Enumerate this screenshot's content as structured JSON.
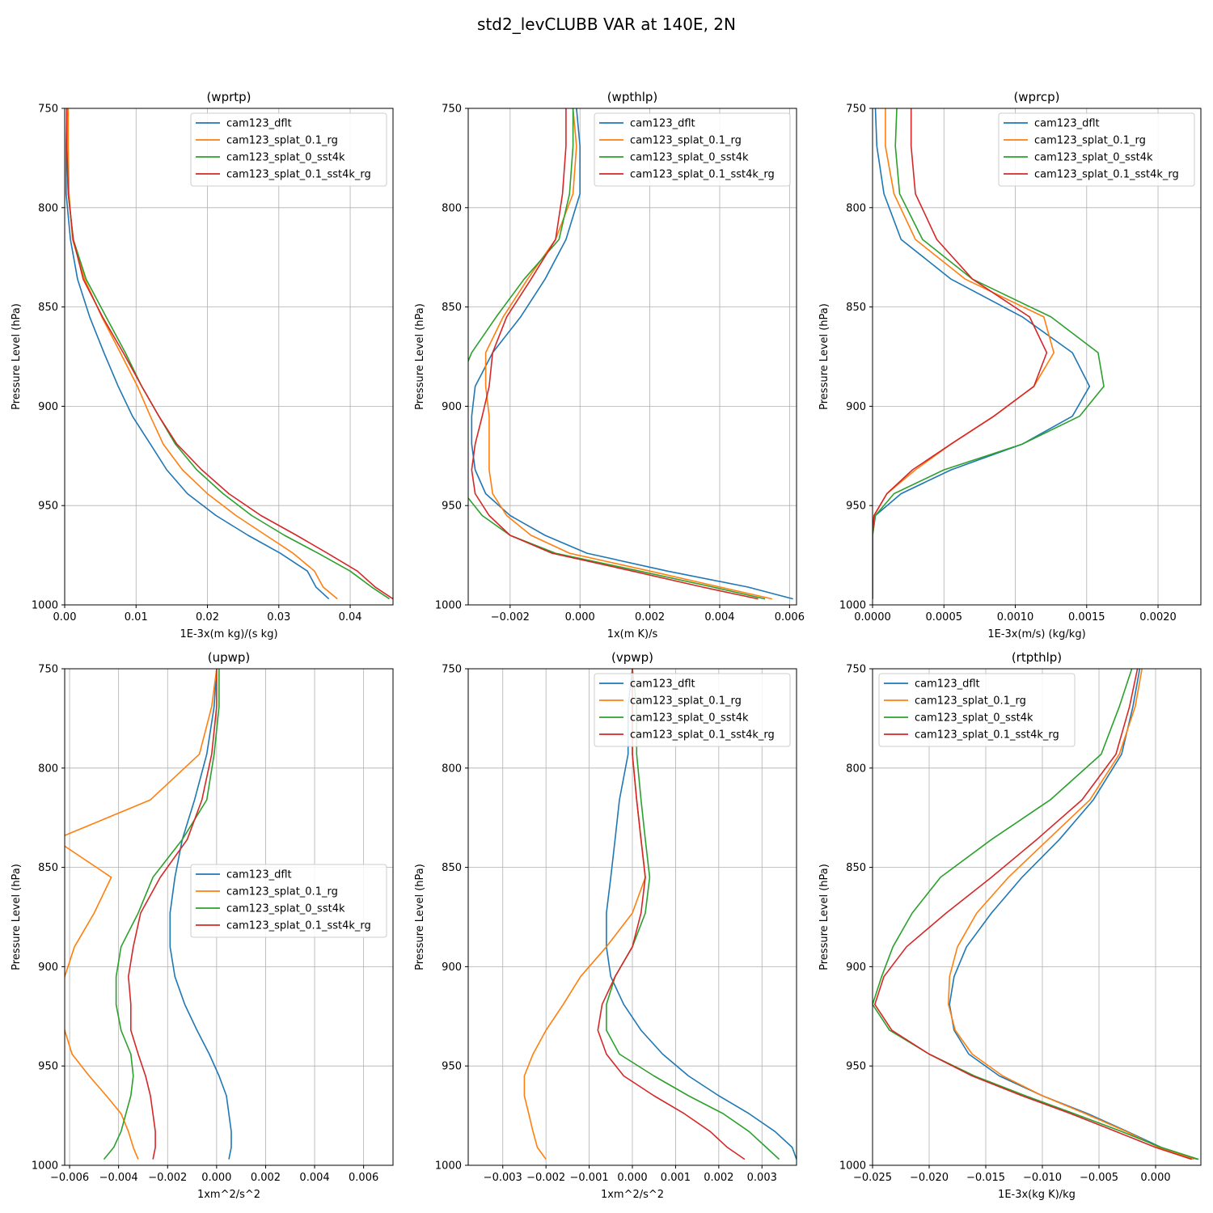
{
  "figure": {
    "title": "std2_levCLUBB VAR at 140E, 2N"
  },
  "colors": {
    "cam123_dflt": "#1f77b4",
    "cam123_splat_0.1_rg": "#ff7f0e",
    "cam123_splat_0_sst4k": "#2ca02c",
    "cam123_splat_0.1_sst4k_rg": "#d62728"
  },
  "chart_data": [
    {
      "type": "line",
      "title": "(wprtp)",
      "xlabel": "1E-3x(m kg)/(s kg)",
      "ylabel": "Pressure Level (hPa)",
      "xlim": [
        0,
        0.046
      ],
      "ylim": [
        1000,
        750
      ],
      "xticks": [
        0,
        0.01,
        0.02,
        0.03,
        0.04
      ],
      "xtick_labels": [
        "0.00",
        "0.01",
        "0.02",
        "0.03",
        "0.04"
      ],
      "yticks": [
        750,
        800,
        850,
        900,
        950,
        1000
      ],
      "ytick_labels": [
        "750",
        "800",
        "850",
        "900",
        "950",
        "1000"
      ],
      "grid": true,
      "legend": "top-right",
      "y": [
        750,
        769,
        793,
        816,
        836,
        855,
        873,
        890,
        905,
        919,
        932,
        944,
        955,
        965,
        974,
        983,
        991,
        997
      ],
      "series": [
        {
          "name": "cam123_dflt",
          "values": [
            0.0003,
            0.0002,
            0.0002,
            0.0008,
            0.0018,
            0.0035,
            0.0055,
            0.0075,
            0.0095,
            0.012,
            0.0143,
            0.0172,
            0.0212,
            0.0257,
            0.0302,
            0.034,
            0.0352,
            0.037
          ]
        },
        {
          "name": "cam123_splat_0.1_rg",
          "values": [
            0.0005,
            0.0005,
            0.0006,
            0.0011,
            0.0028,
            0.0052,
            0.0078,
            0.0102,
            0.012,
            0.0138,
            0.0165,
            0.02,
            0.024,
            0.0282,
            0.032,
            0.035,
            0.0362,
            0.0382
          ]
        },
        {
          "name": "cam123_splat_0_sst4k",
          "values": [
            0.0003,
            0.0003,
            0.0005,
            0.0012,
            0.003,
            0.0058,
            0.0085,
            0.0108,
            0.0132,
            0.0155,
            0.0185,
            0.0222,
            0.0262,
            0.0308,
            0.0355,
            0.04,
            0.043,
            0.0455
          ]
        },
        {
          "name": "cam123_splat_0.1_sst4k_rg",
          "values": [
            0.0003,
            0.0003,
            0.0005,
            0.0012,
            0.0026,
            0.0053,
            0.0082,
            0.0108,
            0.0132,
            0.0157,
            0.0192,
            0.023,
            0.0275,
            0.0325,
            0.0368,
            0.041,
            0.0435,
            0.046
          ]
        }
      ]
    },
    {
      "type": "line",
      "title": "(wpthlp)",
      "xlabel": "1x(m K)/s",
      "ylabel": "Pressure Level (hPa)",
      "xlim": [
        -0.0032,
        0.0062
      ],
      "ylim": [
        1000,
        750
      ],
      "xticks": [
        -0.002,
        0,
        0.002,
        0.004,
        0.006
      ],
      "xtick_labels": [
        "−0.002",
        "0.000",
        "0.002",
        "0.004",
        "0.006"
      ],
      "yticks": [
        750,
        800,
        850,
        900,
        950,
        1000
      ],
      "ytick_labels": [
        "750",
        "800",
        "850",
        "900",
        "950",
        "1000"
      ],
      "grid": true,
      "legend": "top-right",
      "y": [
        750,
        769,
        793,
        816,
        836,
        855,
        873,
        890,
        905,
        919,
        932,
        944,
        955,
        965,
        974,
        983,
        991,
        997
      ],
      "series": [
        {
          "name": "cam123_dflt",
          "values": [
            -0.0001,
            0.0,
            0.0,
            -0.0004,
            -0.001,
            -0.0017,
            -0.0025,
            -0.003,
            -0.0031,
            -0.0031,
            -0.003,
            -0.0027,
            -0.002,
            -0.001,
            0.0002,
            0.0025,
            0.0048,
            0.0061
          ]
        },
        {
          "name": "cam123_splat_0.1_rg",
          "values": [
            -0.0002,
            -0.0001,
            -0.0002,
            -0.0007,
            -0.0015,
            -0.0022,
            -0.0027,
            -0.0027,
            -0.0026,
            -0.0026,
            -0.0026,
            -0.0025,
            -0.0021,
            -0.0014,
            -0.0003,
            0.002,
            0.004,
            0.0055
          ]
        },
        {
          "name": "cam123_splat_0_sst4k",
          "values": [
            -0.0002,
            -0.0002,
            -0.0003,
            -0.0006,
            -0.0016,
            -0.0024,
            -0.0031,
            -0.0035,
            -0.0036,
            -0.0036,
            -0.0035,
            -0.0033,
            -0.0028,
            -0.002,
            -0.0007,
            0.0017,
            0.0038,
            0.0053
          ]
        },
        {
          "name": "cam123_splat_0.1_sst4k_rg",
          "values": [
            -0.0004,
            -0.0004,
            -0.0005,
            -0.0007,
            -0.0014,
            -0.0021,
            -0.0025,
            -0.0026,
            -0.0028,
            -0.003,
            -0.0031,
            -0.003,
            -0.0026,
            -0.002,
            -0.0008,
            0.0015,
            0.0035,
            0.0051
          ]
        }
      ]
    },
    {
      "type": "line",
      "title": "(wprcp)",
      "xlabel": "1E-3x(m/s) (kg/kg)",
      "ylabel": "Pressure Level (hPa)",
      "xlim": [
        0,
        0.0023
      ],
      "ylim": [
        1000,
        750
      ],
      "xticks": [
        0,
        0.0005,
        0.001,
        0.0015,
        0.002
      ],
      "xtick_labels": [
        "0.0000",
        "0.0005",
        "0.0010",
        "0.0015",
        "0.0020"
      ],
      "yticks": [
        750,
        800,
        850,
        900,
        950,
        1000
      ],
      "ytick_labels": [
        "750",
        "800",
        "850",
        "900",
        "950",
        "1000"
      ],
      "grid": true,
      "legend": "top-right",
      "y": [
        750,
        769,
        793,
        816,
        836,
        855,
        873,
        890,
        905,
        919,
        932,
        944,
        955,
        965,
        974,
        983,
        991,
        997
      ],
      "series": [
        {
          "name": "cam123_dflt",
          "values": [
            2e-05,
            3e-05,
            8e-05,
            0.0002,
            0.00055,
            0.00105,
            0.0014,
            0.00152,
            0.0014,
            0.00105,
            0.00055,
            0.0002,
            2e-05,
            0.0,
            0.0,
            0.0,
            0.0,
            0.0
          ]
        },
        {
          "name": "cam123_splat_0.1_rg",
          "values": [
            9e-05,
            9e-05,
            0.00015,
            0.0003,
            0.00065,
            0.0012,
            0.00127,
            0.00113,
            0.00085,
            0.00055,
            0.0003,
            0.0001,
            1e-05,
            0.0,
            0.0,
            0.0,
            0.0,
            0.0
          ]
        },
        {
          "name": "cam123_splat_0_sst4k",
          "values": [
            0.00017,
            0.00016,
            0.00019,
            0.00035,
            0.0007,
            0.00125,
            0.00158,
            0.00162,
            0.00145,
            0.00105,
            0.0005,
            0.00015,
            2e-05,
            0.0,
            0.0,
            0.0,
            0.0,
            0.0
          ]
        },
        {
          "name": "cam123_splat_0.1_sst4k_rg",
          "values": [
            0.00027,
            0.00027,
            0.0003,
            0.00045,
            0.0007,
            0.0011,
            0.00122,
            0.00113,
            0.00085,
            0.00055,
            0.00028,
            0.0001,
            1e-05,
            0.0,
            0.0,
            0.0,
            0.0,
            0.0
          ]
        }
      ]
    },
    {
      "type": "line",
      "title": "(upwp)",
      "xlabel": "1xm^2/s^2",
      "ylabel": "Pressure Level (hPa)",
      "xlim": [
        -0.0062,
        0.0072
      ],
      "ylim": [
        1000,
        750
      ],
      "xticks": [
        -0.006,
        -0.004,
        -0.002,
        0,
        0.002,
        0.004,
        0.006
      ],
      "xtick_labels": [
        "−0.006",
        "−0.004",
        "−0.002",
        "0.000",
        "0.002",
        "0.004",
        "0.006"
      ],
      "yticks": [
        750,
        800,
        850,
        900,
        950,
        1000
      ],
      "ytick_labels": [
        "750",
        "800",
        "850",
        "900",
        "950",
        "1000"
      ],
      "grid": true,
      "legend": "center-right",
      "y": [
        750,
        769,
        793,
        816,
        836,
        855,
        873,
        890,
        905,
        919,
        932,
        944,
        955,
        965,
        974,
        983,
        991,
        997
      ],
      "series": [
        {
          "name": "cam123_dflt",
          "values": [
            0.0,
            -0.0001,
            -0.0004,
            -0.0009,
            -0.0014,
            -0.0017,
            -0.0019,
            -0.0019,
            -0.0017,
            -0.0013,
            -0.0008,
            -0.0003,
            0.0001,
            0.0004,
            0.0005,
            0.0006,
            0.0006,
            0.0005
          ]
        },
        {
          "name": "cam123_splat_0.1_rg",
          "values": [
            0.0,
            -0.0002,
            -0.0007,
            -0.0027,
            -0.0066,
            -0.0043,
            -0.005,
            -0.0058,
            -0.0062,
            -0.0064,
            -0.0062,
            -0.0059,
            -0.0052,
            -0.0045,
            -0.0039,
            -0.0036,
            -0.0034,
            -0.0032
          ]
        },
        {
          "name": "cam123_splat_0_sst4k",
          "values": [
            0.0001,
            0.0001,
            -0.0001,
            -0.0004,
            -0.0014,
            -0.0026,
            -0.0032,
            -0.0039,
            -0.0041,
            -0.0041,
            -0.0039,
            -0.0035,
            -0.0034,
            -0.0035,
            -0.0037,
            -0.0039,
            -0.0042,
            -0.0046
          ]
        },
        {
          "name": "cam123_splat_0.1_sst4k_rg",
          "values": [
            0.0,
            0.0,
            -0.0002,
            -0.0006,
            -0.0012,
            -0.0023,
            -0.0031,
            -0.0034,
            -0.0036,
            -0.0035,
            -0.0035,
            -0.0032,
            -0.0029,
            -0.0027,
            -0.0026,
            -0.0025,
            -0.0025,
            -0.0026
          ]
        }
      ]
    },
    {
      "type": "line",
      "title": "(vpwp)",
      "xlabel": "1xm^2/s^2",
      "ylabel": "Pressure Level (hPa)",
      "xlim": [
        -0.0038,
        0.0038
      ],
      "ylim": [
        1000,
        750
      ],
      "xticks": [
        -0.003,
        -0.002,
        -0.001,
        0,
        0.001,
        0.002,
        0.003
      ],
      "xtick_labels": [
        "−0.003",
        "−0.002",
        "−0.001",
        "0.000",
        "0.001",
        "0.002",
        "0.003"
      ],
      "yticks": [
        750,
        800,
        850,
        900,
        950,
        1000
      ],
      "ytick_labels": [
        "750",
        "800",
        "850",
        "900",
        "950",
        "1000"
      ],
      "grid": true,
      "legend": "top-right",
      "y": [
        750,
        769,
        793,
        816,
        836,
        855,
        873,
        890,
        905,
        919,
        932,
        944,
        955,
        965,
        974,
        983,
        991,
        997
      ],
      "series": [
        {
          "name": "cam123_dflt",
          "values": [
            0.0,
            -0.0001,
            -0.0001,
            -0.0003,
            -0.0004,
            -0.0005,
            -0.0006,
            -0.0006,
            -0.0005,
            -0.0002,
            0.0002,
            0.0007,
            0.0013,
            0.002,
            0.0027,
            0.0033,
            0.0037,
            0.0038
          ]
        },
        {
          "name": "cam123_splat_0.1_rg",
          "values": [
            0.0,
            0.0,
            0.0,
            0.0001,
            0.0002,
            0.0003,
            0.0,
            -0.0006,
            -0.0012,
            -0.0016,
            -0.002,
            -0.0023,
            -0.0025,
            -0.0025,
            -0.0024,
            -0.0023,
            -0.0022,
            -0.002
          ]
        },
        {
          "name": "cam123_splat_0_sst4k",
          "values": [
            0.0,
            0.0001,
            0.0001,
            0.0002,
            0.0003,
            0.0004,
            0.0003,
            0.0,
            -0.0004,
            -0.0006,
            -0.0006,
            -0.0003,
            0.0005,
            0.0013,
            0.0021,
            0.0027,
            0.0031,
            0.0034
          ]
        },
        {
          "name": "cam123_splat_0.1_sst4k_rg",
          "values": [
            0.0,
            0.0,
            0.0,
            0.0001,
            0.0002,
            0.0003,
            0.0002,
            0.0,
            -0.0004,
            -0.0007,
            -0.0008,
            -0.0006,
            -0.0002,
            0.0005,
            0.0012,
            0.0018,
            0.0022,
            0.0026
          ]
        }
      ]
    },
    {
      "type": "line",
      "title": "(rtpthlp)",
      "xlabel": "1E-3x(kg K)/kg",
      "ylabel": "Pressure Level (hPa)",
      "xlim": [
        -0.025,
        0.004
      ],
      "ylim": [
        1000,
        750
      ],
      "xticks": [
        -0.025,
        -0.02,
        -0.015,
        -0.01,
        -0.005,
        0
      ],
      "xtick_labels": [
        "−0.025",
        "−0.020",
        "−0.015",
        "−0.010",
        "−0.005",
        "0.000"
      ],
      "yticks": [
        750,
        800,
        850,
        900,
        950,
        1000
      ],
      "ytick_labels": [
        "750",
        "800",
        "850",
        "900",
        "950",
        "1000"
      ],
      "grid": true,
      "legend": "top-left",
      "y": [
        750,
        769,
        793,
        816,
        836,
        855,
        873,
        890,
        905,
        919,
        932,
        944,
        955,
        965,
        974,
        983,
        991,
        997
      ],
      "series": [
        {
          "name": "cam123_dflt",
          "values": [
            -0.0014,
            -0.002,
            -0.003,
            -0.0055,
            -0.0085,
            -0.0118,
            -0.0145,
            -0.0167,
            -0.0178,
            -0.0182,
            -0.0178,
            -0.0165,
            -0.0138,
            -0.01,
            -0.006,
            -0.0025,
            0.0005,
            0.0037
          ]
        },
        {
          "name": "cam123_splat_0.1_rg",
          "values": [
            -0.0012,
            -0.0018,
            -0.0032,
            -0.0058,
            -0.0095,
            -0.013,
            -0.0158,
            -0.0175,
            -0.0182,
            -0.0183,
            -0.0177,
            -0.0162,
            -0.0135,
            -0.01,
            -0.0062,
            -0.0026,
            0.0003,
            0.0034
          ]
        },
        {
          "name": "cam123_splat_0_sst4k",
          "values": [
            -0.0021,
            -0.0032,
            -0.0048,
            -0.0093,
            -0.0145,
            -0.019,
            -0.0215,
            -0.0232,
            -0.0242,
            -0.025,
            -0.0235,
            -0.02,
            -0.016,
            -0.0115,
            -0.0072,
            -0.003,
            0.0005,
            0.0038
          ]
        },
        {
          "name": "cam123_splat_0.1_sst4k_rg",
          "values": [
            -0.0016,
            -0.0023,
            -0.0035,
            -0.0065,
            -0.0105,
            -0.0145,
            -0.0185,
            -0.022,
            -0.024,
            -0.0248,
            -0.0233,
            -0.02,
            -0.0162,
            -0.0118,
            -0.0075,
            -0.0035,
            0.0,
            0.0032
          ]
        }
      ]
    }
  ]
}
